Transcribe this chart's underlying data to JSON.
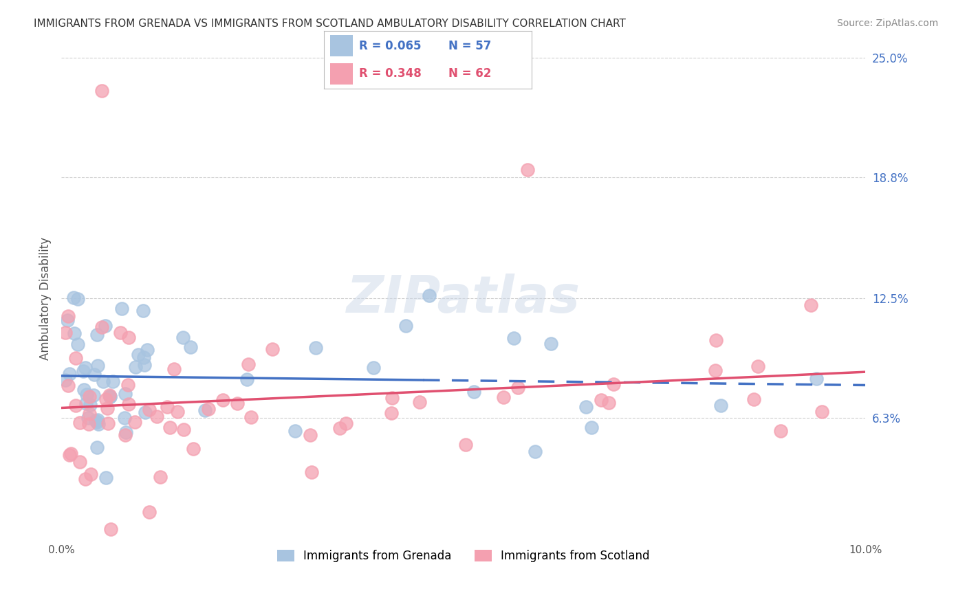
{
  "title": "IMMIGRANTS FROM GRENADA VS IMMIGRANTS FROM SCOTLAND AMBULATORY DISABILITY CORRELATION CHART",
  "source": "Source: ZipAtlas.com",
  "ylabel": "Ambulatory Disability",
  "xlim": [
    0.0,
    0.1
  ],
  "ylim": [
    0.0,
    0.25
  ],
  "ytick_labels": [
    "6.3%",
    "12.5%",
    "18.8%",
    "25.0%"
  ],
  "ytick_values": [
    0.063,
    0.125,
    0.188,
    0.25
  ],
  "grenada_R": 0.065,
  "grenada_N": "57",
  "scotland_R": 0.348,
  "scotland_N": "62",
  "grenada_color": "#a8c4e0",
  "scotland_color": "#f4a0b0",
  "grenada_line_color": "#4472c4",
  "scotland_line_color": "#e05070",
  "background_color": "#ffffff",
  "grid_color": "#cccccc",
  "right_ytick_color": "#4472c4"
}
